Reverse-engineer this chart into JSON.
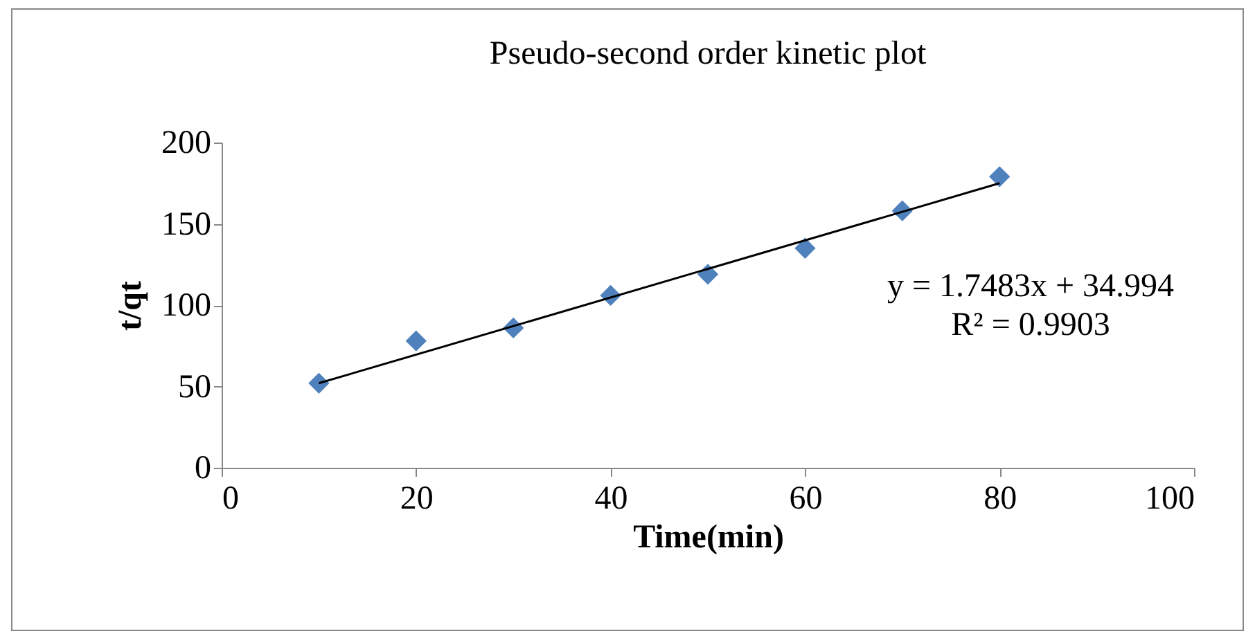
{
  "chart_data": {
    "type": "scatter",
    "title": "Pseudo-second order kinetic plot",
    "xlabel": "Time(min)",
    "ylabel": "t/qt",
    "x": [
      10,
      20,
      30,
      40,
      50,
      60,
      70,
      80
    ],
    "series": [
      {
        "color": "#4f81bd",
        "marker": "diamond",
        "values": [
          52,
          78,
          86,
          106,
          119,
          135,
          158,
          179
        ]
      },
      {
        "type": "line",
        "color": "#000000",
        "x": [
          10,
          80
        ],
        "values": [
          52,
          175
        ]
      }
    ],
    "annotations": [
      "y = 1.7483x + 34.994",
      "R² = 0.9903"
    ],
    "xlim": [
      0,
      100
    ],
    "xticks": [
      0,
      20,
      40,
      60,
      80,
      100
    ],
    "ylim": [
      0,
      200
    ],
    "yticks": [
      0,
      50,
      100,
      150,
      200
    ],
    "grid": false,
    "legend": false
  }
}
